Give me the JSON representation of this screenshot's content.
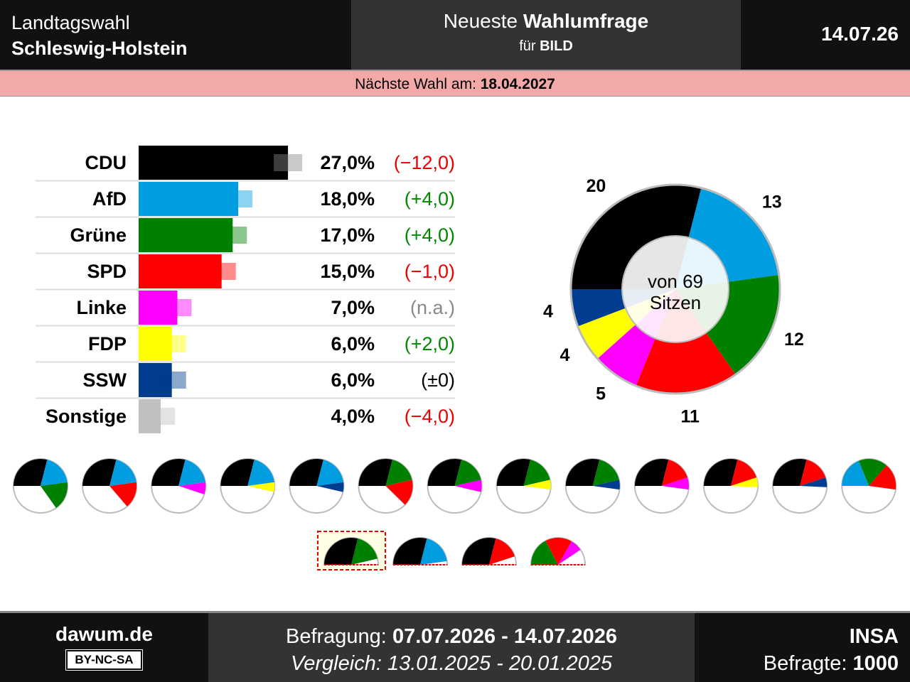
{
  "header": {
    "election": "Landtagswahl",
    "state": "Schleswig-Holstein",
    "title_pre": "Neueste",
    "title_bold": "Wahlumfrage",
    "client_pre": "für",
    "client": "BILD",
    "date": "14.07.26"
  },
  "next_election": {
    "label": "Nächste Wahl am:",
    "date": "18.04.2027"
  },
  "chart_data": [
    {
      "type": "bar",
      "categories": [
        "CDU",
        "AfD",
        "Grüne",
        "SPD",
        "Linke",
        "FDP",
        "SSW",
        "Sonstige"
      ],
      "values": [
        27,
        18,
        17,
        15,
        7,
        6,
        6,
        4
      ],
      "value_labels": [
        "27,0%",
        "18,0%",
        "17,0%",
        "15,0%",
        "7,0%",
        "6,0%",
        "6,0%",
        "4,0%"
      ],
      "colors": [
        "#000000",
        "#009ee0",
        "#008000",
        "#ff0000",
        "#ff00ff",
        "#ffff00",
        "#003c8f",
        "#c0c0c0"
      ],
      "changes": [
        -12,
        4,
        4,
        -1,
        null,
        2,
        0,
        -4
      ],
      "change_labels": [
        "(−12,0)",
        "(+4,0)",
        "(+4,0)",
        "(−1,0)",
        "(n.a.)",
        "(+2,0)",
        "(±0)",
        "(−4,0)"
      ]
    },
    {
      "type": "donut",
      "categories": [
        "CDU",
        "AfD",
        "Grüne",
        "SPD",
        "Linke",
        "FDP",
        "SSW"
      ],
      "values": [
        20,
        13,
        12,
        11,
        5,
        4,
        4
      ],
      "colors": [
        "#000000",
        "#009ee0",
        "#008000",
        "#ff0000",
        "#ff00ff",
        "#ffff00",
        "#003c8f"
      ],
      "center_label": [
        "von 69",
        "Sitzen"
      ]
    },
    {
      "type": "coalitions",
      "full_circle": [
        [
          "CDU",
          "AfD",
          "Grüne"
        ],
        [
          "CDU",
          "AfD",
          "SPD"
        ],
        [
          "CDU",
          "AfD",
          "Linke"
        ],
        [
          "CDU",
          "AfD",
          "FDP"
        ],
        [
          "CDU",
          "AfD",
          "SSW"
        ],
        [
          "CDU",
          "Grüne",
          "SPD"
        ],
        [
          "CDU",
          "Grüne",
          "Linke"
        ],
        [
          "CDU",
          "Grüne",
          "FDP"
        ],
        [
          "CDU",
          "Grüne",
          "SSW"
        ],
        [
          "CDU",
          "SPD",
          "Linke"
        ],
        [
          "CDU",
          "SPD",
          "FDP"
        ],
        [
          "CDU",
          "SPD",
          "SSW"
        ],
        [
          "AfD",
          "Grüne",
          "SPD"
        ]
      ],
      "semicircle": [
        [
          "CDU",
          "Grüne"
        ],
        [
          "CDU",
          "AfD"
        ],
        [
          "CDU",
          "SPD"
        ],
        [
          "Grüne",
          "SPD",
          "Linke"
        ]
      ],
      "highlighted": 0
    }
  ],
  "footer": {
    "site": "dawum.de",
    "license": "BY-NC-SA",
    "period_label": "Befragung:",
    "period": "07.07.2026 - 14.07.2026",
    "comparison": "Vergleich: 13.01.2025 - 20.01.2025",
    "institute": "INSA",
    "respondents_label": "Befragte:",
    "respondents": 1000
  }
}
